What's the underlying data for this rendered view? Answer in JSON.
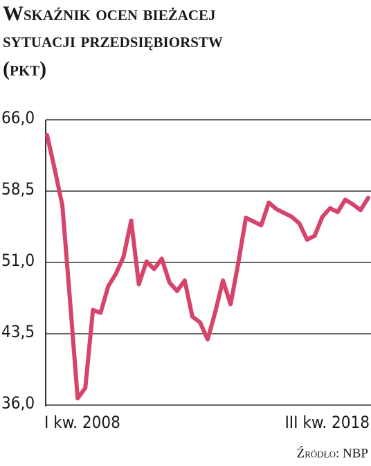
{
  "chart_data": {
    "type": "line",
    "title": [
      "Wskaźnik ocen bieżacej",
      "sytuacji przedsiębiorstw",
      "(pkt)"
    ],
    "source": "Źródło: NBP",
    "categories": [
      "I kw. 2008",
      null,
      null,
      null,
      null,
      null,
      null,
      null,
      null,
      null,
      null,
      null,
      null,
      null,
      null,
      null,
      null,
      null,
      null,
      null,
      null,
      null,
      null,
      null,
      null,
      null,
      null,
      null,
      null,
      null,
      null,
      null,
      null,
      null,
      null,
      null,
      null,
      null,
      null,
      null,
      null,
      null,
      "III kw. 2018"
    ],
    "series": [
      {
        "name": null,
        "color": "#d6436b",
        "values": [
          64.4,
          60.8,
          57.0,
          47.0,
          36.7,
          37.8,
          46.0,
          45.7,
          48.5,
          49.8,
          51.6,
          55.4,
          48.7,
          51.1,
          50.3,
          51.4,
          48.9,
          48.0,
          49.1,
          45.3,
          44.7,
          42.9,
          45.8,
          49.1,
          46.6,
          50.9,
          55.7,
          55.3,
          54.9,
          57.3,
          56.6,
          56.2,
          55.8,
          55.1,
          53.4,
          53.8,
          55.8,
          56.7,
          56.3,
          57.6,
          57.1,
          56.5,
          57.8
        ]
      }
    ],
    "ylim": [
      36,
      66
    ],
    "yticks": [
      {
        "value": 36,
        "label": "36,0"
      },
      {
        "value": 43.5,
        "label": "43,5"
      },
      {
        "value": 51,
        "label": "51,0"
      },
      {
        "value": 58.5,
        "label": "58,5"
      },
      {
        "value": 66,
        "label": "66,0"
      }
    ],
    "grid": true
  }
}
